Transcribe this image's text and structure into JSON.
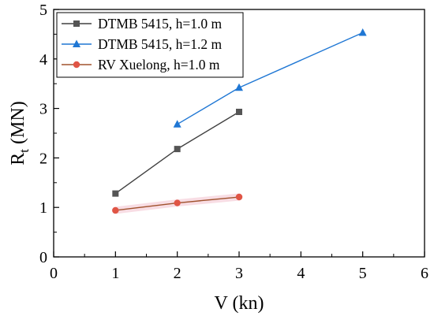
{
  "chart_data": {
    "type": "line",
    "xlabel": "V (kn)",
    "ylabel_main": "R",
    "ylabel_sub": "t",
    "ylabel_unit": " (MN)",
    "xlim": [
      0,
      6
    ],
    "ylim": [
      0,
      5
    ],
    "xticks": [
      0,
      1,
      2,
      3,
      4,
      5,
      6
    ],
    "yticks": [
      0,
      1,
      2,
      3,
      4,
      5
    ],
    "grid": false,
    "legend_position": "top-left",
    "series": [
      {
        "name": "DTMB 5415, h=1.0 m",
        "marker": "square",
        "line_color": "#404040",
        "marker_color": "#555555",
        "x": [
          1,
          2,
          3
        ],
        "y": [
          1.28,
          2.18,
          2.93
        ]
      },
      {
        "name": "DTMB 5415, h=1.2 m",
        "marker": "triangle",
        "line_color": "#1f77d4",
        "marker_color": "#1f77d4",
        "x": [
          2,
          3,
          5
        ],
        "y": [
          2.68,
          3.42,
          4.53
        ]
      },
      {
        "name": "RV Xuelong, h=1.0 m",
        "marker": "circle",
        "line_color": "#a0522d",
        "marker_color": "#e05545",
        "x": [
          1,
          2,
          3
        ],
        "y": [
          0.94,
          1.09,
          1.21
        ]
      }
    ]
  }
}
